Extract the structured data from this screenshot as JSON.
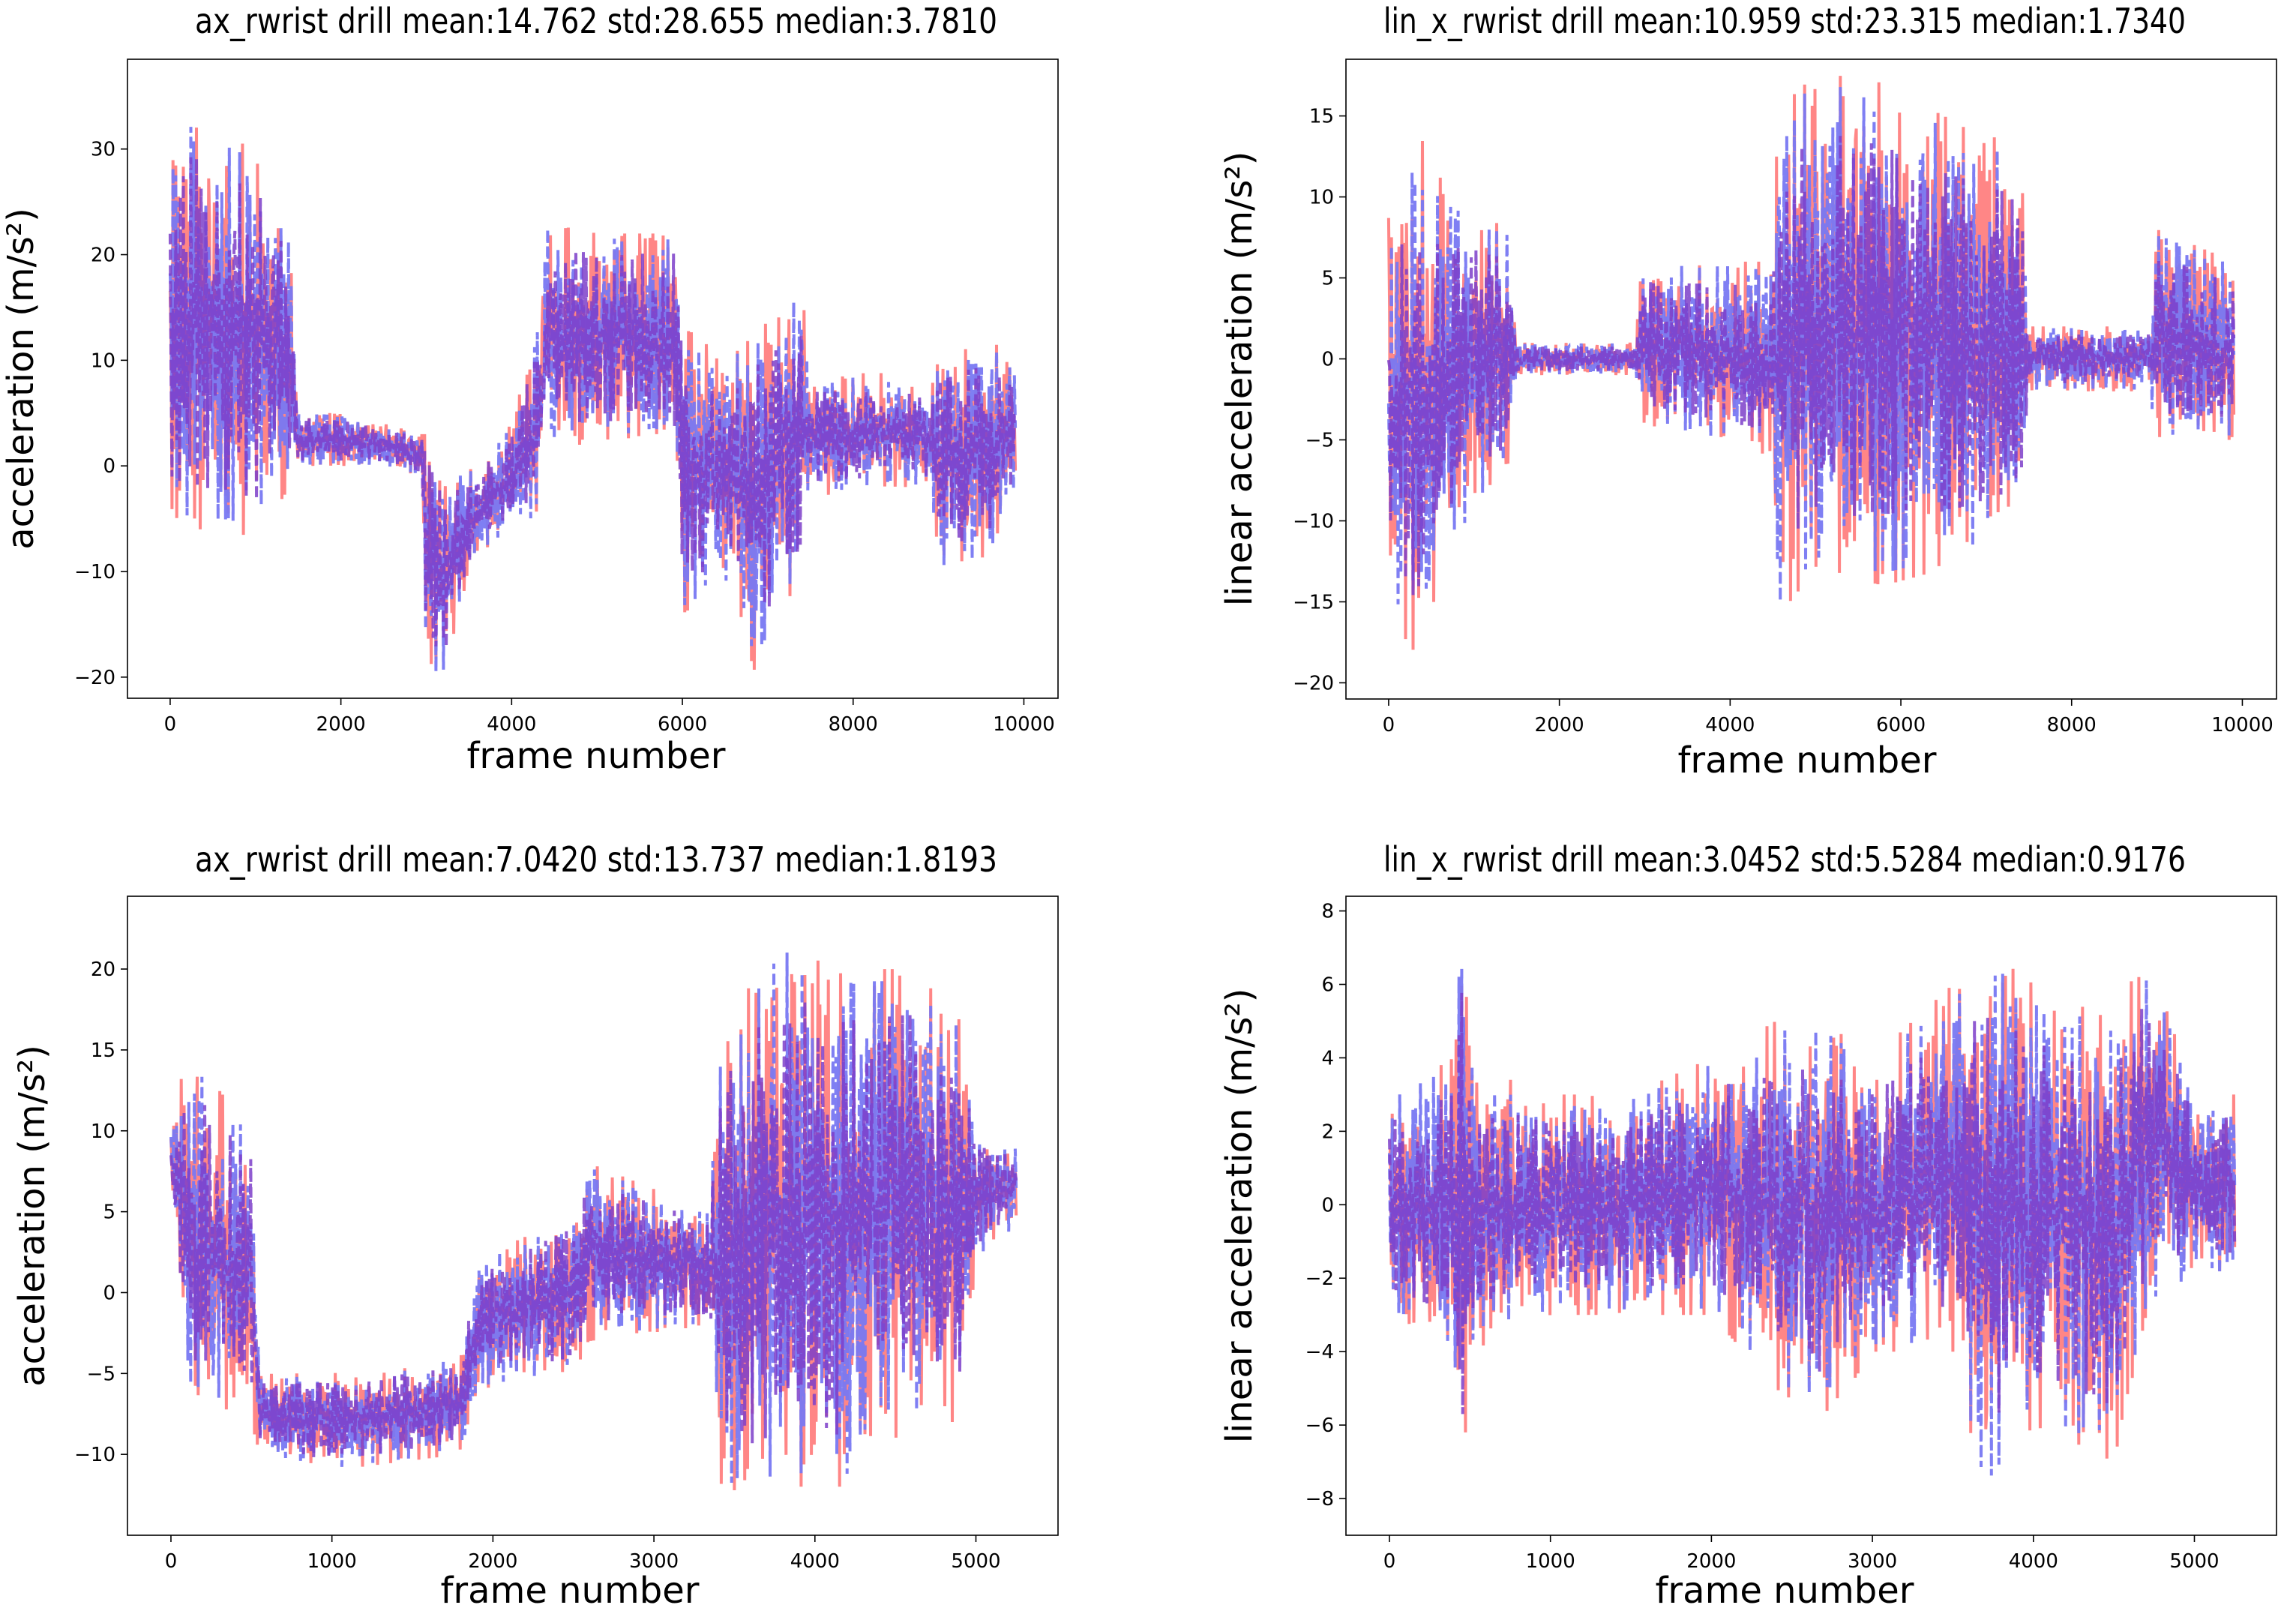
{
  "chart_data": [
    {
      "type": "line",
      "title": "ax_rwrist drill mean:14.762 std:28.655 median:3.7810",
      "xlabel": "frame number",
      "ylabel": "acceleration (m/s²)",
      "xlim": [
        -500,
        10400
      ],
      "ylim": [
        -22,
        38.5
      ],
      "xticks": [
        0,
        2000,
        4000,
        6000,
        8000,
        10000
      ],
      "yticks": [
        -20,
        -10,
        0,
        10,
        20,
        30
      ],
      "ytick_labels": [
        "−20",
        "−10",
        "0",
        "10",
        "20",
        "30"
      ],
      "envelope": [
        [
          0,
          -5,
          32
        ],
        [
          300,
          -6,
          34
        ],
        [
          700,
          -6,
          31
        ],
        [
          1000,
          -7,
          30
        ],
        [
          1400,
          -2,
          22
        ],
        [
          1500,
          0,
          5
        ],
        [
          2000,
          0,
          5
        ],
        [
          2500,
          0,
          4
        ],
        [
          2950,
          -1,
          3
        ],
        [
          3000,
          -20,
          3
        ],
        [
          3200,
          -20,
          -1
        ],
        [
          3600,
          -8,
          0
        ],
        [
          4000,
          -7,
          4
        ],
        [
          4300,
          -5,
          13
        ],
        [
          4400,
          2,
          23
        ],
        [
          5000,
          2,
          22
        ],
        [
          5600,
          3,
          22
        ],
        [
          5900,
          3,
          22
        ],
        [
          6000,
          -14,
          13
        ],
        [
          6600,
          -11,
          11
        ],
        [
          6800,
          -20,
          12
        ],
        [
          7400,
          -10,
          17
        ],
        [
          7500,
          -3,
          8
        ],
        [
          8300,
          -2,
          9
        ],
        [
          8900,
          -2,
          7
        ],
        [
          9000,
          -10,
          10
        ],
        [
          9600,
          -9,
          12
        ],
        [
          9900,
          -2,
          10
        ]
      ],
      "series": [
        {
          "color": "#ff7f7f",
          "dash": "solid",
          "seed": 11,
          "scale": 1.0
        },
        {
          "color": "#7878f2",
          "dash": "dashed",
          "seed": 23,
          "scale": 0.95
        },
        {
          "color": "#7d3ec9",
          "dash": "dashed",
          "seed": 37,
          "scale": 0.8
        }
      ]
    },
    {
      "type": "line",
      "title": "lin_x_rwrist drill mean:10.959 std:23.315 median:1.7340",
      "xlabel": "frame number",
      "ylabel": "linear acceleration (m/s²)",
      "xlim": [
        -500,
        10400
      ],
      "ylim": [
        -21,
        18.5
      ],
      "xticks": [
        0,
        2000,
        4000,
        6000,
        8000,
        10000
      ],
      "yticks": [
        -20,
        -15,
        -10,
        -5,
        0,
        5,
        10,
        15
      ],
      "ytick_labels": [
        "−20",
        "−15",
        "−10",
        "−5",
        "0",
        "5",
        "10",
        "15"
      ],
      "envelope": [
        [
          0,
          -14,
          9
        ],
        [
          300,
          -19,
          15
        ],
        [
          700,
          -12,
          10
        ],
        [
          1400,
          -7,
          8
        ],
        [
          1500,
          -1,
          1
        ],
        [
          2900,
          -1,
          1
        ],
        [
          2950,
          -4,
          6
        ],
        [
          4500,
          -6,
          6
        ],
        [
          4550,
          -16,
          15
        ],
        [
          5000,
          -13,
          18
        ],
        [
          5800,
          -14,
          17
        ],
        [
          6500,
          -13,
          15
        ],
        [
          7400,
          -11,
          13
        ],
        [
          7500,
          -2,
          2
        ],
        [
          8900,
          -2,
          2
        ],
        [
          9000,
          -5,
          8
        ],
        [
          9900,
          -5,
          6
        ]
      ],
      "series": [
        {
          "color": "#ff7f7f",
          "dash": "solid",
          "seed": 41,
          "scale": 1.0
        },
        {
          "color": "#7878f2",
          "dash": "dashed",
          "seed": 53,
          "scale": 0.95
        },
        {
          "color": "#7d3ec9",
          "dash": "dashed",
          "seed": 67,
          "scale": 0.75
        }
      ]
    },
    {
      "type": "line",
      "title": "ax_rwrist drill mean:7.0420 std:13.737 median:1.8193",
      "xlabel": "frame number",
      "ylabel": "acceleration (m/s²)",
      "xlim": [
        -270,
        5510
      ],
      "ylim": [
        -15,
        24.5
      ],
      "xticks": [
        0,
        1000,
        2000,
        3000,
        4000,
        5000
      ],
      "yticks": [
        -10,
        -5,
        0,
        5,
        10,
        15,
        20
      ],
      "ytick_labels": [
        "−10",
        "−5",
        "0",
        "5",
        "10",
        "15",
        "20"
      ],
      "envelope": [
        [
          0,
          7,
          10
        ],
        [
          100,
          -6,
          15
        ],
        [
          500,
          -8,
          10
        ],
        [
          550,
          -10,
          -5
        ],
        [
          1000,
          -11,
          -5
        ],
        [
          1800,
          -10,
          -4
        ],
        [
          1900,
          -6,
          2
        ],
        [
          2500,
          -5,
          5
        ],
        [
          2600,
          -3,
          8
        ],
        [
          3350,
          -2,
          5
        ],
        [
          3400,
          -13,
          16
        ],
        [
          3800,
          -12,
          22
        ],
        [
          4200,
          -12,
          20
        ],
        [
          4600,
          -8,
          20
        ],
        [
          4900,
          -8,
          17
        ],
        [
          5000,
          2,
          10
        ],
        [
          5250,
          4,
          9
        ]
      ],
      "series": [
        {
          "color": "#ff7f7f",
          "dash": "solid",
          "seed": 71,
          "scale": 1.0
        },
        {
          "color": "#7878f2",
          "dash": "dashed",
          "seed": 83,
          "scale": 0.95
        },
        {
          "color": "#7d3ec9",
          "dash": "dashed",
          "seed": 97,
          "scale": 0.8
        }
      ]
    },
    {
      "type": "line",
      "title": "lin_x_rwrist drill mean:3.0452 std:5.5284 median:0.9176",
      "xlabel": "frame number",
      "ylabel": "linear acceleration (m/s²)",
      "xlim": [
        -270,
        5510
      ],
      "ylim": [
        -9,
        8.4
      ],
      "xticks": [
        0,
        1000,
        2000,
        3000,
        4000,
        5000
      ],
      "yticks": [
        -8,
        -6,
        -4,
        -2,
        0,
        2,
        4,
        6,
        8
      ],
      "ytick_labels": [
        "−8",
        "−6",
        "−4",
        "−2",
        "0",
        "2",
        "4",
        "6",
        "8"
      ],
      "envelope": [
        [
          0,
          -3,
          3
        ],
        [
          400,
          -4,
          4
        ],
        [
          450,
          -8,
          8
        ],
        [
          500,
          -4,
          4
        ],
        [
          1000,
          -3,
          3
        ],
        [
          1500,
          -3,
          3
        ],
        [
          2000,
          -3,
          4
        ],
        [
          2400,
          -5,
          5
        ],
        [
          2700,
          -6,
          5
        ],
        [
          3000,
          -4,
          4
        ],
        [
          3500,
          -4,
          6
        ],
        [
          3700,
          -8,
          7
        ],
        [
          4000,
          -6,
          6
        ],
        [
          4500,
          -7,
          5
        ],
        [
          4700,
          -3,
          7
        ],
        [
          5000,
          -2,
          3
        ],
        [
          5250,
          -2,
          3
        ]
      ],
      "series": [
        {
          "color": "#ff7f7f",
          "dash": "solid",
          "seed": 101,
          "scale": 1.0
        },
        {
          "color": "#7878f2",
          "dash": "dashed",
          "seed": 113,
          "scale": 0.95
        },
        {
          "color": "#7d3ec9",
          "dash": "dashed",
          "seed": 127,
          "scale": 0.75
        }
      ]
    }
  ]
}
